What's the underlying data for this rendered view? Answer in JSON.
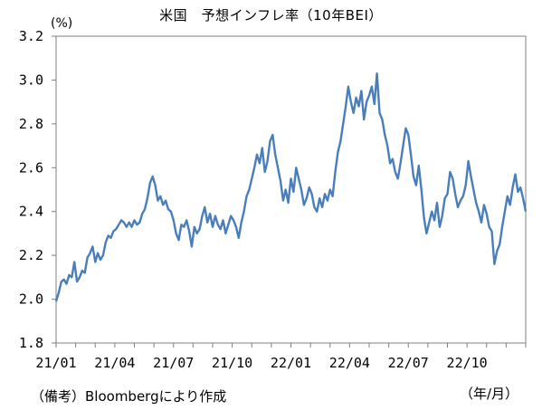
{
  "chart_data": {
    "type": "line",
    "title": "米国　予想インフレ率（10年BEI）",
    "ylabel": "(%)",
    "xlabel": "（年/月）",
    "source": "（備考）Bloombergにより作成",
    "ylim": [
      1.8,
      3.2
    ],
    "yticks": [
      "1.8",
      "2.0",
      "2.2",
      "2.4",
      "2.6",
      "2.8",
      "3.0",
      "3.2"
    ],
    "xticks": [
      "21/01",
      "21/04",
      "21/07",
      "21/10",
      "22/01",
      "22/04",
      "22/07",
      "22/10"
    ],
    "grid": false,
    "colors": {
      "line": "#4a7ebb",
      "axis": "#7f7f7f"
    },
    "series": [
      {
        "values": [
          1.99,
          2.03,
          2.08,
          2.09,
          2.07,
          2.11,
          2.1,
          2.17,
          2.08,
          2.1,
          2.13,
          2.12,
          2.19,
          2.21,
          2.24,
          2.17,
          2.21,
          2.18,
          2.2,
          2.26,
          2.29,
          2.28,
          2.31,
          2.32,
          2.34,
          2.36,
          2.35,
          2.33,
          2.35,
          2.33,
          2.36,
          2.34,
          2.35,
          2.39,
          2.41,
          2.46,
          2.53,
          2.56,
          2.52,
          2.45,
          2.47,
          2.43,
          2.45,
          2.41,
          2.4,
          2.36,
          2.3,
          2.27,
          2.34,
          2.33,
          2.36,
          2.31,
          2.24,
          2.33,
          2.3,
          2.32,
          2.38,
          2.42,
          2.35,
          2.39,
          2.33,
          2.38,
          2.34,
          2.32,
          2.36,
          2.3,
          2.34,
          2.38,
          2.36,
          2.33,
          2.28,
          2.35,
          2.4,
          2.47,
          2.5,
          2.55,
          2.6,
          2.66,
          2.62,
          2.69,
          2.58,
          2.63,
          2.72,
          2.75,
          2.66,
          2.6,
          2.54,
          2.45,
          2.5,
          2.44,
          2.55,
          2.49,
          2.6,
          2.55,
          2.5,
          2.43,
          2.46,
          2.51,
          2.48,
          2.42,
          2.4,
          2.46,
          2.42,
          2.48,
          2.45,
          2.5,
          2.47,
          2.58,
          2.67,
          2.72,
          2.8,
          2.88,
          2.97,
          2.9,
          2.85,
          2.92,
          2.88,
          2.95,
          2.82,
          2.9,
          2.93,
          2.97,
          2.89,
          3.03,
          2.85,
          2.82,
          2.75,
          2.7,
          2.62,
          2.64,
          2.58,
          2.55,
          2.62,
          2.7,
          2.78,
          2.75,
          2.66,
          2.56,
          2.52,
          2.61,
          2.5,
          2.37,
          2.3,
          2.35,
          2.4,
          2.36,
          2.44,
          2.33,
          2.38,
          2.46,
          2.48,
          2.58,
          2.55,
          2.48,
          2.42,
          2.45,
          2.47,
          2.52,
          2.63,
          2.56,
          2.5,
          2.44,
          2.4,
          2.35,
          2.43,
          2.39,
          2.33,
          2.31,
          2.16,
          2.22,
          2.25,
          2.33,
          2.4,
          2.47,
          2.43,
          2.51,
          2.57,
          2.49,
          2.51,
          2.46,
          2.4
        ]
      }
    ]
  }
}
